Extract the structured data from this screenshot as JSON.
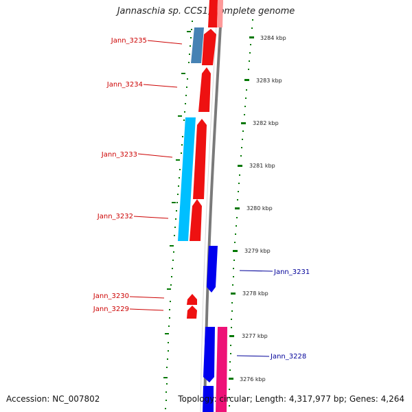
{
  "title": "Jannaschia sp. CCS1, complete genome",
  "accession": "Accession: NC_007802",
  "footer": "Topology: circular; Length: 4,317,977 bp; Genes: 4,264",
  "colors": {
    "forward": "#ff0000",
    "reverse": "#0000ee",
    "label_left": "#cc0000",
    "label_right": "#000099",
    "tick": "#007700",
    "backbone": "#808080"
  },
  "scale": {
    "unit": "kbp",
    "ticks": [
      "3284 kbp",
      "3283 kbp",
      "3282 kbp",
      "3281 kbp",
      "3280 kbp",
      "3279 kbp",
      "3278 kbp",
      "3277 kbp",
      "3276 kbp"
    ]
  },
  "gene_labels_left": [
    "Jann_3235",
    "Jann_3234",
    "Jann_3233",
    "Jann_3232",
    "Jann_3230",
    "Jann_3229"
  ],
  "gene_labels_right": [
    "Jann_3231",
    "Jann_3228"
  ]
}
